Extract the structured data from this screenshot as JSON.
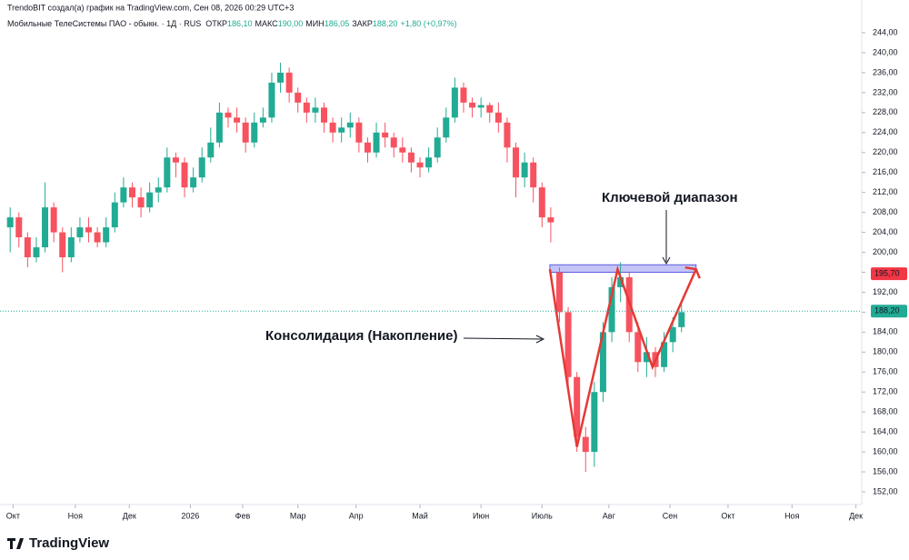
{
  "chart_data": {
    "type": "candlestick",
    "header": {
      "attribution": "TrendoBIT создал(а) график на TradingView.com, Сен 08, 2026 00:29 UTC+3",
      "symbol": "Мобильные ТелеСистемы ПАО - обыкн. · 1Д · RUS",
      "ohlc": [
        {
          "label": "ОТКР",
          "value": "186,10"
        },
        {
          "label": "МАКС",
          "value": "190,00"
        },
        {
          "label": "МИН",
          "value": "186,05"
        },
        {
          "label": "ЗАКР",
          "value": "188,20"
        }
      ],
      "change": "+1,80 (+0,97%)"
    },
    "up_color": "#22ab94",
    "down_color": "#f7525f",
    "x": [
      1,
      4,
      7,
      10,
      13,
      16,
      19,
      22,
      25,
      28,
      31,
      34,
      37,
      40,
      43,
      46,
      49,
      52,
      55,
      58,
      61,
      64,
      67,
      70,
      73,
      76,
      79,
      82,
      85,
      88,
      91,
      94,
      97,
      100,
      103,
      106,
      109,
      112,
      115,
      118,
      121,
      124,
      127,
      130,
      133,
      136,
      139,
      142,
      145,
      148,
      151,
      154,
      157,
      160,
      163,
      166,
      169,
      172,
      175,
      178,
      181,
      184,
      187
    ],
    "open": [
      205,
      207,
      203,
      199,
      201,
      209,
      204,
      199,
      203,
      205,
      204,
      202,
      205,
      210,
      213,
      211,
      209,
      212,
      213,
      219,
      218,
      213,
      215,
      219,
      222,
      228,
      227,
      226,
      222,
      226,
      227,
      234,
      236,
      232,
      230,
      228,
      229,
      226,
      224,
      225,
      226,
      222,
      220,
      224,
      223,
      221,
      220,
      218,
      217,
      219,
      223,
      227,
      233,
      230,
      229,
      229.5,
      228,
      226,
      221,
      215,
      218,
      213,
      207
    ],
    "high": [
      209,
      208,
      204,
      203,
      214,
      210,
      205,
      205,
      207,
      207,
      205,
      207,
      212,
      215,
      214,
      213,
      214,
      215,
      221,
      220,
      219,
      217,
      221,
      225,
      230,
      229,
      229,
      227,
      228,
      229,
      236,
      238,
      237,
      233,
      231,
      231,
      230,
      227,
      227,
      228,
      227,
      223,
      226,
      226,
      224,
      223,
      221,
      219,
      221,
      225,
      229,
      235,
      234,
      231,
      231,
      230,
      230,
      227,
      222,
      220,
      219,
      214,
      209
    ],
    "low": [
      200,
      201,
      197,
      198,
      200,
      202,
      196,
      198,
      202,
      202,
      201,
      201,
      204,
      209,
      209,
      207,
      208,
      210,
      212,
      215,
      211,
      212,
      214,
      218,
      221,
      225,
      224,
      220,
      221,
      225,
      226,
      232,
      230,
      228,
      226,
      226,
      224,
      222,
      222,
      223,
      220,
      218,
      219,
      221,
      219,
      218,
      216,
      215,
      216,
      218,
      222,
      226,
      228,
      227,
      227,
      226,
      224,
      218,
      211,
      213,
      210,
      205,
      202
    ],
    "close": [
      207,
      203,
      199,
      201,
      209,
      204,
      199,
      203,
      205,
      204,
      202,
      205,
      210,
      213,
      211,
      209,
      212,
      213,
      219,
      218,
      213,
      215,
      219,
      222,
      228,
      227,
      226,
      222,
      226,
      227,
      234,
      236,
      232,
      230,
      228,
      229,
      226,
      224,
      225,
      226,
      222,
      220,
      224,
      223,
      221,
      220,
      218,
      217,
      219,
      223,
      227,
      233,
      230,
      229,
      229.5,
      228,
      226,
      221,
      215,
      218,
      213,
      207,
      206
    ],
    "pattern_candles": {
      "x": [
        190,
        193,
        196,
        199,
        202,
        205,
        208,
        211,
        214,
        217,
        220,
        223,
        226,
        229,
        232
      ],
      "open": [
        196,
        188,
        175,
        163,
        160,
        172,
        184,
        193,
        195,
        184,
        178,
        180,
        177,
        182,
        185
      ],
      "high": [
        197,
        189,
        176,
        165,
        174,
        186,
        195,
        198,
        196,
        186,
        183,
        181,
        184,
        187,
        190
      ],
      "low": [
        186,
        173,
        160,
        156,
        157,
        170,
        182,
        190,
        182,
        176,
        175,
        175,
        176,
        180,
        184
      ],
      "close": [
        188,
        175,
        163,
        160,
        172,
        184,
        193,
        195,
        184,
        178,
        180,
        177,
        182,
        185,
        188
      ]
    },
    "pattern_line": {
      "color": "#e53935",
      "x": [
        186.7,
        196,
        210,
        222,
        237
      ],
      "y": [
        196.6,
        161,
        196.6,
        177,
        196.6
      ]
    },
    "key_zone": {
      "color": "#9c9cf0",
      "low": 196,
      "high": 197.5,
      "x": [
        186.7,
        237
      ]
    },
    "annotations": [
      "Ключевой диапазон",
      "Консолидация (Накопление)"
    ],
    "price_tags": [
      {
        "value": 195.7,
        "label": "195,70",
        "color": "#f23645"
      },
      {
        "value": 188.2,
        "label": "188,20",
        "color": "#22ab94"
      }
    ],
    "xlim": [
      -2.5,
      294
    ],
    "xticks": [
      {
        "value": 2,
        "label": "Окт"
      },
      {
        "value": 23.4,
        "label": "Ноя"
      },
      {
        "value": 42,
        "label": "Дек"
      },
      {
        "value": 63,
        "label": "2026"
      },
      {
        "value": 81,
        "label": "Фев"
      },
      {
        "value": 100,
        "label": "Мар"
      },
      {
        "value": 120,
        "label": "Апр"
      },
      {
        "value": 142,
        "label": "Май"
      },
      {
        "value": 163,
        "label": "Июн"
      },
      {
        "value": 184,
        "label": "Июль"
      },
      {
        "value": 207,
        "label": "Авг"
      },
      {
        "value": 228,
        "label": "Сен"
      },
      {
        "value": 248,
        "label": "Окт"
      },
      {
        "value": 270,
        "label": "Ноя"
      },
      {
        "value": 292,
        "label": "Дек"
      }
    ],
    "ylim": [
      149.45,
      250.56
    ],
    "yticks": [
      {
        "value": 244,
        "label": "244,00"
      },
      {
        "value": 240,
        "label": "240,00"
      },
      {
        "value": 236,
        "label": "236,00"
      },
      {
        "value": 232,
        "label": "232,00"
      },
      {
        "value": 228,
        "label": "228,00"
      },
      {
        "value": 224,
        "label": "224,00"
      },
      {
        "value": 220,
        "label": "220,00"
      },
      {
        "value": 216,
        "label": "216,00"
      },
      {
        "value": 212,
        "label": "212,00"
      },
      {
        "value": 208,
        "label": "208,00"
      },
      {
        "value": 204,
        "label": "204,00"
      },
      {
        "value": 200,
        "label": "200,00"
      },
      {
        "value": 196,
        "label": "196,00"
      },
      {
        "value": 192,
        "label": "192,00"
      },
      {
        "value": 188,
        "label": "188,00"
      },
      {
        "value": 184,
        "label": "184,00"
      },
      {
        "value": 180,
        "label": "180,00"
      },
      {
        "value": 176,
        "label": "176,00"
      },
      {
        "value": 172,
        "label": "172,00"
      },
      {
        "value": 168,
        "label": "168,00"
      },
      {
        "value": 164,
        "label": "164,00"
      },
      {
        "value": 160,
        "label": "160,00"
      },
      {
        "value": 156,
        "label": "156,00"
      },
      {
        "value": 152,
        "label": "152,00"
      }
    ],
    "footer": "TradingView"
  }
}
